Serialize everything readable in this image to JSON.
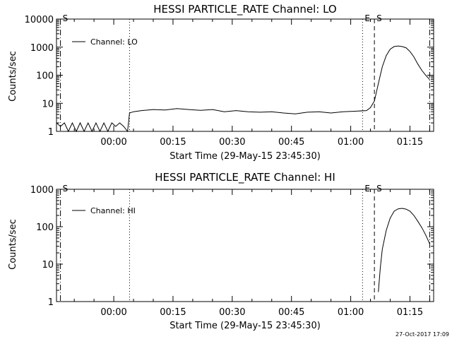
{
  "timestamp": "27-Oct-2017 17:09",
  "chart_data": [
    {
      "type": "line",
      "title": "HESSI PARTICLE_RATE Channel: LO",
      "xlabel": "Start Time (29-May-15 23:45:30)",
      "ylabel": "Counts/sec",
      "yscale": "log",
      "ylim": [
        1,
        10000
      ],
      "xlim": [
        "23:45:30",
        "01:21:00"
      ],
      "x_tick_labels": [
        "00:00",
        "00:15",
        "00:30",
        "00:45",
        "01:00",
        "01:15"
      ],
      "y_tick_labels": [
        "1",
        "10",
        "100",
        "1000",
        "10000"
      ],
      "legend": {
        "position": "top-left",
        "entries": [
          "Channel: LO"
        ]
      },
      "markers": [
        {
          "time": "23:46:30",
          "style": "dash-dot",
          "label": "S"
        },
        {
          "time": "00:04:00",
          "style": "dotted",
          "label": ""
        },
        {
          "time": "01:03:00",
          "style": "dotted",
          "label": "E"
        },
        {
          "time": "01:06:00",
          "style": "dashed",
          "label": "S"
        },
        {
          "time": "01:20:00",
          "style": "dash-dot",
          "label": ""
        }
      ],
      "series": [
        {
          "name": "Channel: LO",
          "x": [
            "23:45:30",
            "23:46:30",
            "23:47:30",
            "23:48:30",
            "23:49:30",
            "23:50:30",
            "23:51:30",
            "23:52:30",
            "23:53:30",
            "23:54:30",
            "23:55:30",
            "23:56:30",
            "23:57:30",
            "23:58:30",
            "23:59:30",
            "00:00:30",
            "00:01:30",
            "00:02:30",
            "00:03:30",
            "00:04:00",
            "00:05:00",
            "00:07:00",
            "00:10:00",
            "00:13:00",
            "00:16:00",
            "00:19:00",
            "00:22:00",
            "00:25:00",
            "00:28:00",
            "00:31:00",
            "00:34:00",
            "00:37:00",
            "00:40:00",
            "00:43:00",
            "00:46:00",
            "00:49:00",
            "00:52:00",
            "00:55:00",
            "00:58:00",
            "01:01:00",
            "01:04:00",
            "01:05:00",
            "01:06:00",
            "01:07:00",
            "01:08:00",
            "01:09:00",
            "01:10:00",
            "01:11:00",
            "01:12:00",
            "01:13:00",
            "01:14:00",
            "01:15:00",
            "01:16:00",
            "01:17:00",
            "01:18:00",
            "01:19:00",
            "01:20:00"
          ],
          "y": [
            2,
            1.5,
            2,
            1,
            2,
            1,
            2,
            1,
            2,
            1,
            2,
            1,
            2,
            1,
            2,
            1.5,
            2,
            1.5,
            1,
            4.5,
            5,
            5.5,
            6,
            5.8,
            6.5,
            6,
            5.6,
            6,
            5,
            5.5,
            5,
            4.8,
            5,
            4.5,
            4.2,
            4.8,
            5,
            4.5,
            5,
            5.2,
            5.5,
            7,
            12,
            50,
            200,
            500,
            850,
            1050,
            1100,
            1050,
            950,
            700,
            450,
            250,
            150,
            100,
            70
          ]
        }
      ]
    },
    {
      "type": "line",
      "title": "HESSI PARTICLE_RATE Channel: HI",
      "xlabel": "Start Time (29-May-15 23:45:30)",
      "ylabel": "Counts/sec",
      "yscale": "log",
      "ylim": [
        1,
        1000
      ],
      "xlim": [
        "23:45:30",
        "01:21:00"
      ],
      "x_tick_labels": [
        "00:00",
        "00:15",
        "00:30",
        "00:45",
        "01:00",
        "01:15"
      ],
      "y_tick_labels": [
        "1",
        "10",
        "100",
        "1000"
      ],
      "legend": {
        "position": "top-left",
        "entries": [
          "Channel: HI"
        ]
      },
      "markers": [
        {
          "time": "23:46:30",
          "style": "dash-dot",
          "label": "S"
        },
        {
          "time": "00:04:00",
          "style": "dotted",
          "label": ""
        },
        {
          "time": "01:03:00",
          "style": "dotted",
          "label": "E"
        },
        {
          "time": "01:06:00",
          "style": "dashed",
          "label": "S"
        },
        {
          "time": "01:20:00",
          "style": "dash-dot",
          "label": ""
        }
      ],
      "series": [
        {
          "name": "Channel: HI",
          "x": [
            "01:07:00",
            "01:07:30",
            "01:08:00",
            "01:09:00",
            "01:10:00",
            "01:11:00",
            "01:12:00",
            "01:13:00",
            "01:14:00",
            "01:15:00",
            "01:16:00",
            "01:17:00",
            "01:18:00",
            "01:19:00",
            "01:20:00"
          ],
          "y": [
            1.8,
            8,
            25,
            80,
            170,
            260,
            300,
            310,
            295,
            260,
            200,
            140,
            95,
            60,
            35
          ]
        }
      ]
    }
  ]
}
